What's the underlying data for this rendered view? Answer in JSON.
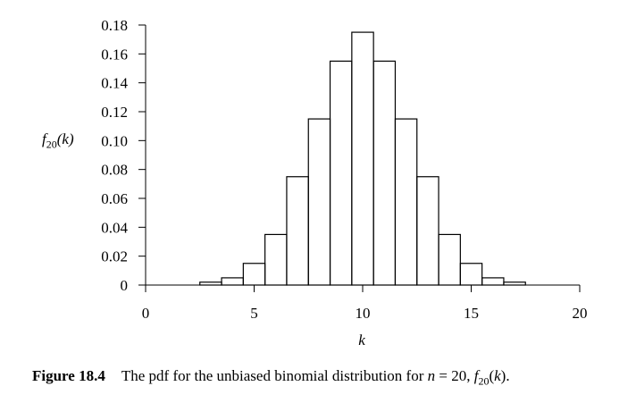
{
  "chart_data": {
    "type": "bar",
    "style": "step-histogram",
    "x": [
      3,
      4,
      5,
      6,
      7,
      8,
      9,
      10,
      11,
      12,
      13,
      14,
      15,
      16,
      17
    ],
    "values": [
      0.002,
      0.005,
      0.015,
      0.035,
      0.075,
      0.115,
      0.155,
      0.175,
      0.155,
      0.115,
      0.075,
      0.035,
      0.015,
      0.005,
      0.002
    ],
    "xlabel": "k",
    "ylabel": "f20(k)",
    "xlim": [
      0,
      20
    ],
    "ylim": [
      0,
      0.18
    ],
    "x_ticks": [
      "0",
      "5",
      "10",
      "15",
      "20"
    ],
    "y_ticks": [
      "0",
      "0.02",
      "0.04",
      "0.06",
      "0.08",
      "0.10",
      "0.12",
      "0.14",
      "0.16",
      "0.18"
    ],
    "grid": false
  },
  "caption": {
    "figure_number": "Figure 18.4",
    "text": "The pdf for the unbiased binomial distribution for n = 20, f20(k)."
  }
}
